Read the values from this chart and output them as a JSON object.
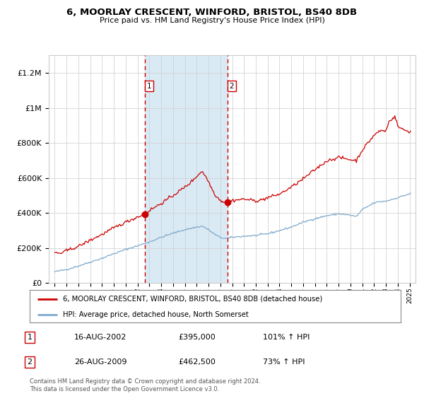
{
  "title": "6, MOORLAY CRESCENT, WINFORD, BRISTOL, BS40 8DB",
  "subtitle": "Price paid vs. HM Land Registry's House Price Index (HPI)",
  "legend_line1": "6, MOORLAY CRESCENT, WINFORD, BRISTOL, BS40 8DB (detached house)",
  "legend_line2": "HPI: Average price, detached house, North Somerset",
  "transaction1_date": "16-AUG-2002",
  "transaction1_price": 395000,
  "transaction1_label": "101% ↑ HPI",
  "transaction2_date": "26-AUG-2009",
  "transaction2_price": 462500,
  "transaction2_label": "73% ↑ HPI",
  "footer": "Contains HM Land Registry data © Crown copyright and database right 2024.\nThis data is licensed under the Open Government Licence v3.0.",
  "red_color": "#cc0000",
  "blue_color": "#7faacc",
  "shade_color": "#daeaf5",
  "grid_color": "#cccccc",
  "background_color": "#ffffff",
  "ylim_max": 1300000,
  "ytick_interval": 200000,
  "transaction1_x": 2002.625,
  "transaction2_x": 2009.625,
  "xmin": 1994.5,
  "xmax": 2025.5
}
